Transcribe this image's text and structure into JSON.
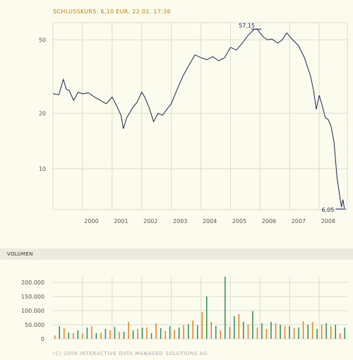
{
  "header": {
    "quote_line": "SCHLUSSKURS: 6,10 EUR, 22.01. 17:36"
  },
  "volume_section": {
    "title": "VOLUMEN"
  },
  "footer": {
    "copyright": "(C) 2009 INTERACTIVE DATA MANAGED SOLUTIONS AG"
  },
  "colors": {
    "price_line": "#1a2450",
    "grid": "#dedecd",
    "volume_orange": "#e67e22",
    "volume_green": "#2e8b57"
  },
  "chart_data": [
    {
      "type": "line",
      "scale": "log",
      "ylim": [
        6.0,
        62.0
      ],
      "xlim": [
        1999.0,
        2008.95
      ],
      "y_ticks": [
        10,
        20,
        50
      ],
      "y_tick_labels": [
        "10",
        "20",
        "50"
      ],
      "x_ticks": [
        2000,
        2001,
        2002,
        2003,
        2004,
        2005,
        2006,
        2007,
        2008
      ],
      "x_tick_labels": [
        "2000",
        "2001",
        "2002",
        "2003",
        "2004",
        "2005",
        "2006",
        "2007",
        "2008"
      ],
      "grid": true,
      "annotations": [
        {
          "label": "57,15",
          "x": 2005.9,
          "y": 57.15
        },
        {
          "label": "6,05",
          "x": 2008.75,
          "y": 6.05
        }
      ],
      "x": [
        1999.0,
        1999.2,
        1999.35,
        1999.45,
        1999.55,
        1999.7,
        1999.85,
        2000.0,
        2000.2,
        2000.4,
        2000.6,
        2000.8,
        2001.0,
        2001.15,
        2001.3,
        2001.38,
        2001.5,
        2001.7,
        2001.85,
        2002.0,
        2002.1,
        2002.25,
        2002.4,
        2002.55,
        2002.7,
        2002.9,
        2003.0,
        2003.2,
        2003.4,
        2003.6,
        2003.8,
        2004.0,
        2004.2,
        2004.4,
        2004.6,
        2004.8,
        2005.0,
        2005.2,
        2005.4,
        2005.6,
        2005.8,
        2005.9,
        2006.1,
        2006.25,
        2006.4,
        2006.6,
        2006.75,
        2006.9,
        2007.1,
        2007.3,
        2007.5,
        2007.7,
        2007.8,
        2007.9,
        2008.0,
        2008.1,
        2008.2,
        2008.3,
        2008.4,
        2008.5,
        2008.6,
        2008.7,
        2008.75,
        2008.8,
        2008.85
      ],
      "y": [
        25.5,
        25.2,
        30.5,
        27.0,
        26.5,
        23.5,
        26.0,
        25.5,
        25.8,
        24.5,
        23.5,
        22.5,
        24.5,
        22.0,
        19.5,
        16.5,
        19.0,
        21.5,
        23.0,
        26.0,
        24.5,
        21.5,
        18.0,
        20.0,
        19.5,
        21.5,
        22.5,
        27.0,
        32.0,
        36.5,
        41.5,
        40.0,
        39.0,
        40.5,
        38.5,
        40.0,
        45.5,
        44.0,
        48.0,
        53.0,
        57.0,
        57.15,
        52.0,
        50.0,
        50.5,
        48.0,
        50.0,
        54.5,
        50.0,
        46.5,
        40.0,
        32.0,
        27.0,
        21.0,
        25.0,
        22.0,
        19.0,
        18.5,
        17.0,
        14.0,
        9.0,
        7.0,
        6.2,
        6.8,
        6.1
      ]
    },
    {
      "type": "bar",
      "ylim": [
        0,
        220000
      ],
      "y_ticks": [
        0,
        50000,
        100000,
        150000,
        200000
      ],
      "y_tick_labels": [
        "0",
        "50.000",
        "100.000",
        "150.000",
        "200.000"
      ],
      "grid": true,
      "series": [
        {
          "values": [
            12000,
            38000,
            20000,
            18000,
            45000,
            22000,
            30000,
            25000,
            60000,
            35000,
            40000,
            55000,
            28000,
            32000,
            48000,
            65000,
            95000,
            60000,
            30000,
            42000,
            88000,
            50000,
            40000,
            35000,
            55000,
            45000,
            38000,
            62000,
            60000,
            50000,
            45000,
            20000
          ]
        },
        {
          "values": [
            45000,
            22000,
            30000,
            40000,
            20000,
            35000,
            42000,
            25000,
            30000,
            40000,
            20000,
            38000,
            45000,
            40000,
            52000,
            48000,
            150000,
            45000,
            220000,
            80000,
            60000,
            98000,
            55000,
            60000,
            50000,
            45000,
            40000,
            50000,
            35000,
            55000,
            50000,
            40000
          ]
        }
      ]
    }
  ]
}
